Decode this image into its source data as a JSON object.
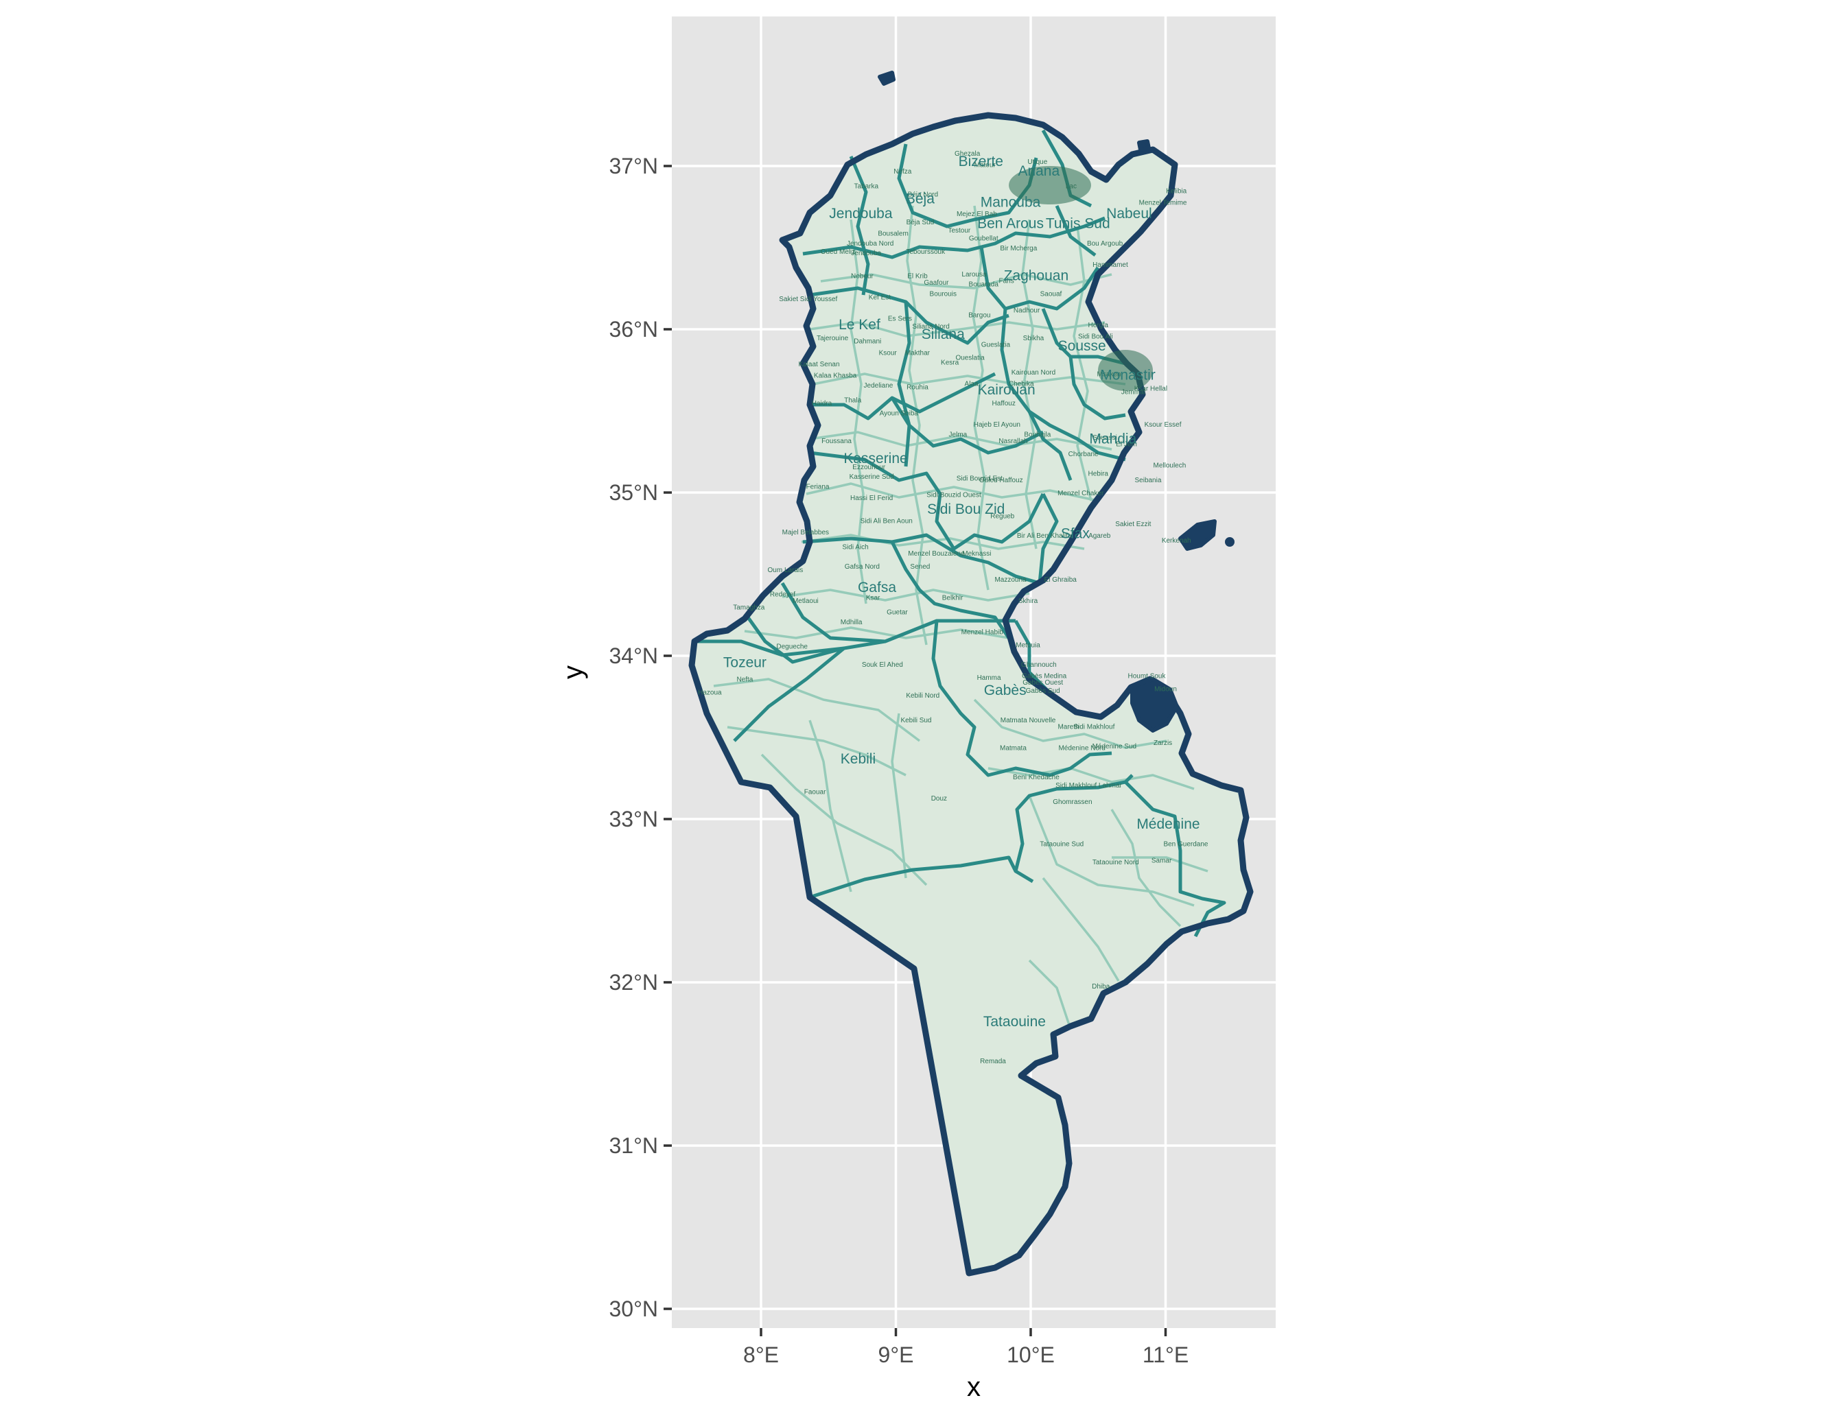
{
  "axes": {
    "x_title": "x",
    "y_title": "y",
    "x_ticks": [
      {
        "lon": 8,
        "label": "8°E"
      },
      {
        "lon": 9,
        "label": "9°E"
      },
      {
        "lon": 10,
        "label": "10°E"
      },
      {
        "lon": 11,
        "label": "11°E"
      }
    ],
    "y_ticks": [
      {
        "lat": 30,
        "label": "30°N"
      },
      {
        "lat": 31,
        "label": "31°N"
      },
      {
        "lat": 32,
        "label": "32°N"
      },
      {
        "lat": 33,
        "label": "33°N"
      },
      {
        "lat": 34,
        "label": "34°N"
      },
      {
        "lat": 35,
        "label": "35°N"
      },
      {
        "lat": 36,
        "label": "36°N"
      },
      {
        "lat": 37,
        "label": "37°N"
      }
    ],
    "lon_range": [
      7.33,
      11.8
    ],
    "lat_range": [
      29.9,
      37.9
    ]
  },
  "colors": {
    "panel": "#e5e5e5",
    "country_outline": "#1b3f63",
    "governorate_border": "#2a8a86",
    "delegation_border": "#96cbb9",
    "fill": "#dce9dd",
    "label": "#2a7b78"
  },
  "governorates": [
    {
      "name": "Bizerte",
      "lon": 9.63,
      "lat": 37.03
    },
    {
      "name": "Ariana",
      "lon": 10.06,
      "lat": 36.97
    },
    {
      "name": "Manouba",
      "lon": 9.85,
      "lat": 36.78
    },
    {
      "name": "Nabeul",
      "lon": 10.73,
      "lat": 36.71
    },
    {
      "name": "Ben Arous",
      "lon": 9.85,
      "lat": 36.65
    },
    {
      "name": "Tunis Sud",
      "lon": 10.35,
      "lat": 36.65
    },
    {
      "name": "Jendouba",
      "lon": 8.74,
      "lat": 36.71
    },
    {
      "name": "Béja",
      "lon": 9.18,
      "lat": 36.8
    },
    {
      "name": "Zaghouan",
      "lon": 10.04,
      "lat": 36.33
    },
    {
      "name": "Le Kef",
      "lon": 8.73,
      "lat": 36.03
    },
    {
      "name": "Siliana",
      "lon": 9.35,
      "lat": 35.97
    },
    {
      "name": "Sousse",
      "lon": 10.38,
      "lat": 35.9
    },
    {
      "name": "Monastir",
      "lon": 10.72,
      "lat": 35.72
    },
    {
      "name": "Kairouan",
      "lon": 9.82,
      "lat": 35.63
    },
    {
      "name": "Mahdia",
      "lon": 10.61,
      "lat": 35.33
    },
    {
      "name": "Kasserine",
      "lon": 8.85,
      "lat": 35.21
    },
    {
      "name": "Sidi Bou Zid",
      "lon": 9.52,
      "lat": 34.9
    },
    {
      "name": "Sfax",
      "lon": 10.33,
      "lat": 34.75
    },
    {
      "name": "Gafsa",
      "lon": 8.86,
      "lat": 34.42
    },
    {
      "name": "Tozeur",
      "lon": 7.88,
      "lat": 33.96
    },
    {
      "name": "Gabès",
      "lon": 9.81,
      "lat": 33.79
    },
    {
      "name": "Kebili",
      "lon": 8.72,
      "lat": 33.37
    },
    {
      "name": "Médenine",
      "lon": 11.02,
      "lat": 32.97
    },
    {
      "name": "Tataouine",
      "lon": 9.88,
      "lat": 31.76
    }
  ],
  "delegations": [
    {
      "name": "Nefza",
      "lon": 9.05,
      "lat": 36.97
    },
    {
      "name": "Tabarka",
      "lon": 8.78,
      "lat": 36.88
    },
    {
      "name": "Béja Nord",
      "lon": 9.2,
      "lat": 36.83
    },
    {
      "name": "Béja Sud",
      "lon": 9.18,
      "lat": 36.66
    },
    {
      "name": "Testour",
      "lon": 9.47,
      "lat": 36.61
    },
    {
      "name": "Goubellat",
      "lon": 9.65,
      "lat": 36.56
    },
    {
      "name": "Bousalem",
      "lon": 8.98,
      "lat": 36.59
    },
    {
      "name": "Jendouba Nord",
      "lon": 8.81,
      "lat": 36.53
    },
    {
      "name": "Oued Meliz",
      "lon": 8.57,
      "lat": 36.48
    },
    {
      "name": "Jendouba",
      "lon": 8.78,
      "lat": 36.47
    },
    {
      "name": "Tebourssouk",
      "lon": 9.22,
      "lat": 36.48
    },
    {
      "name": "Mateur",
      "lon": 9.66,
      "lat": 37.01
    },
    {
      "name": "Ghezala",
      "lon": 9.53,
      "lat": 37.08
    },
    {
      "name": "Utique",
      "lon": 10.05,
      "lat": 37.03
    },
    {
      "name": "Mejez El Bab",
      "lon": 9.6,
      "lat": 36.71
    },
    {
      "name": "Bir Mcherga",
      "lon": 9.91,
      "lat": 36.5
    },
    {
      "name": "Nebeur",
      "lon": 8.75,
      "lat": 36.33
    },
    {
      "name": "El Krib",
      "lon": 9.16,
      "lat": 36.33
    },
    {
      "name": "Bourouis",
      "lon": 9.35,
      "lat": 36.22
    },
    {
      "name": "Gaafour",
      "lon": 9.3,
      "lat": 36.29
    },
    {
      "name": "Larousa",
      "lon": 9.58,
      "lat": 36.34
    },
    {
      "name": "Bouarada",
      "lon": 9.65,
      "lat": 36.28
    },
    {
      "name": "Fahs",
      "lon": 9.82,
      "lat": 36.3
    },
    {
      "name": "Sakiet Sidi Youssef",
      "lon": 8.35,
      "lat": 36.19
    },
    {
      "name": "Kef Est",
      "lon": 8.88,
      "lat": 36.2
    },
    {
      "name": "Es Sers",
      "lon": 9.03,
      "lat": 36.07
    },
    {
      "name": "Siliana Nord",
      "lon": 9.26,
      "lat": 36.02
    },
    {
      "name": "Bargou",
      "lon": 9.62,
      "lat": 36.09
    },
    {
      "name": "Nadhour",
      "lon": 9.97,
      "lat": 36.12
    },
    {
      "name": "Saouaf",
      "lon": 10.15,
      "lat": 36.22
    },
    {
      "name": "Tajerouine",
      "lon": 8.53,
      "lat": 35.95
    },
    {
      "name": "Dahmani",
      "lon": 8.79,
      "lat": 35.93
    },
    {
      "name": "Makthar",
      "lon": 9.16,
      "lat": 35.86
    },
    {
      "name": "Ksour",
      "lon": 8.94,
      "lat": 35.86
    },
    {
      "name": "Gueslatia",
      "lon": 9.74,
      "lat": 35.91
    },
    {
      "name": "Sbikha",
      "lon": 10.02,
      "lat": 35.95
    },
    {
      "name": "Kesra",
      "lon": 9.4,
      "lat": 35.8
    },
    {
      "name": "Kalaat Senan",
      "lon": 8.43,
      "lat": 35.79
    },
    {
      "name": "Kalaa Khasba",
      "lon": 8.55,
      "lat": 35.72
    },
    {
      "name": "Jedeliane",
      "lon": 8.87,
      "lat": 35.66
    },
    {
      "name": "Rouhia",
      "lon": 9.16,
      "lat": 35.65
    },
    {
      "name": "Alaa",
      "lon": 9.56,
      "lat": 35.67
    },
    {
      "name": "Chebika",
      "lon": 9.93,
      "lat": 35.67
    },
    {
      "name": "Kairouan Nord",
      "lon": 10.02,
      "lat": 35.74
    },
    {
      "name": "Haffouz",
      "lon": 9.8,
      "lat": 35.55
    },
    {
      "name": "Haidra",
      "lon": 8.45,
      "lat": 35.55
    },
    {
      "name": "Thala",
      "lon": 8.68,
      "lat": 35.57
    },
    {
      "name": "Ayoun",
      "lon": 8.95,
      "lat": 35.49
    },
    {
      "name": "Sbiba",
      "lon": 9.1,
      "lat": 35.49
    },
    {
      "name": "Hajeb El Ayoun",
      "lon": 9.75,
      "lat": 35.42
    },
    {
      "name": "Oueslatia",
      "lon": 9.55,
      "lat": 35.83
    },
    {
      "name": "Jelma",
      "lon": 9.46,
      "lat": 35.36
    },
    {
      "name": "Nasrallah",
      "lon": 9.87,
      "lat": 35.32
    },
    {
      "name": "Bouhajla",
      "lon": 10.05,
      "lat": 35.36
    },
    {
      "name": "Foussana",
      "lon": 8.56,
      "lat": 35.32
    },
    {
      "name": "Ezzouhour",
      "lon": 8.8,
      "lat": 35.16
    },
    {
      "name": "Kasserine Sud",
      "lon": 8.82,
      "lat": 35.1
    },
    {
      "name": "Feriana",
      "lon": 8.42,
      "lat": 35.04
    },
    {
      "name": "Hassi El Ferid",
      "lon": 8.82,
      "lat": 34.97
    },
    {
      "name": "Sidi Bouzid Est",
      "lon": 9.62,
      "lat": 35.09
    },
    {
      "name": "Sidi Bouzid Ouest",
      "lon": 9.43,
      "lat": 34.99
    },
    {
      "name": "Ouled Haffouz",
      "lon": 9.78,
      "lat": 35.08
    },
    {
      "name": "Menzel Chaker",
      "lon": 10.37,
      "lat": 35.0
    },
    {
      "name": "Chorbane",
      "lon": 10.39,
      "lat": 35.24
    },
    {
      "name": "Hebira",
      "lon": 10.5,
      "lat": 35.12
    },
    {
      "name": "Souassi",
      "lon": 10.55,
      "lat": 35.34
    },
    {
      "name": "Bir Ali Ben Khalifa",
      "lon": 10.1,
      "lat": 34.74
    },
    {
      "name": "Regueb",
      "lon": 9.79,
      "lat": 34.86
    },
    {
      "name": "Sidi Ali Ben Aoun",
      "lon": 8.93,
      "lat": 34.83
    },
    {
      "name": "Majel Belabbes",
      "lon": 8.33,
      "lat": 34.76
    },
    {
      "name": "Sidi Aich",
      "lon": 8.7,
      "lat": 34.67
    },
    {
      "name": "Menzel Bouzaiene",
      "lon": 9.3,
      "lat": 34.63
    },
    {
      "name": "Meknassi",
      "lon": 9.6,
      "lat": 34.63
    },
    {
      "name": "Sened",
      "lon": 9.18,
      "lat": 34.55
    },
    {
      "name": "Gafsa Nord",
      "lon": 8.75,
      "lat": 34.55
    },
    {
      "name": "Oum Larais",
      "lon": 8.18,
      "lat": 34.53
    },
    {
      "name": "Mazzouna",
      "lon": 9.85,
      "lat": 34.47
    },
    {
      "name": "El Ghraiba",
      "lon": 10.22,
      "lat": 34.47
    },
    {
      "name": "Redeyef",
      "lon": 8.16,
      "lat": 34.38
    },
    {
      "name": "Metlaoui",
      "lon": 8.33,
      "lat": 34.34
    },
    {
      "name": "Ksar",
      "lon": 8.83,
      "lat": 34.36
    },
    {
      "name": "Belkhir",
      "lon": 9.42,
      "lat": 34.36
    },
    {
      "name": "Skhira",
      "lon": 9.98,
      "lat": 34.34
    },
    {
      "name": "Mdhilla",
      "lon": 8.67,
      "lat": 34.21
    },
    {
      "name": "Guetar",
      "lon": 9.01,
      "lat": 34.27
    },
    {
      "name": "Menzel Habib",
      "lon": 9.64,
      "lat": 34.15
    },
    {
      "name": "Metouia",
      "lon": 9.98,
      "lat": 34.07
    },
    {
      "name": "Tamaghza",
      "lon": 7.91,
      "lat": 34.3
    },
    {
      "name": "Degueche",
      "lon": 8.23,
      "lat": 34.06
    },
    {
      "name": "Souk El Ahed",
      "lon": 8.9,
      "lat": 33.95
    },
    {
      "name": "Hamma",
      "lon": 9.69,
      "lat": 33.87
    },
    {
      "name": "Ghannouch",
      "lon": 10.06,
      "lat": 33.95
    },
    {
      "name": "Gabès Medina",
      "lon": 10.1,
      "lat": 33.88
    },
    {
      "name": "Gabès Ouest",
      "lon": 10.09,
      "lat": 33.84
    },
    {
      "name": "Gabès Sud",
      "lon": 10.09,
      "lat": 33.79
    },
    {
      "name": "Nefta",
      "lon": 7.88,
      "lat": 33.86
    },
    {
      "name": "Hazoua",
      "lon": 7.62,
      "lat": 33.78
    },
    {
      "name": "Kebili Nord",
      "lon": 9.2,
      "lat": 33.76
    },
    {
      "name": "Kebili Sud",
      "lon": 9.15,
      "lat": 33.61
    },
    {
      "name": "Matmata Nouvelle",
      "lon": 9.98,
      "lat": 33.61
    },
    {
      "name": "Mareth",
      "lon": 10.28,
      "lat": 33.57
    },
    {
      "name": "Sidi Makhlouf",
      "lon": 10.47,
      "lat": 33.57
    },
    {
      "name": "Matmata",
      "lon": 9.87,
      "lat": 33.44
    },
    {
      "name": "Médenine Nord",
      "lon": 10.38,
      "lat": 33.44
    },
    {
      "name": "Médenine Sud",
      "lon": 10.62,
      "lat": 33.45
    },
    {
      "name": "Zarzis",
      "lon": 10.98,
      "lat": 33.47
    },
    {
      "name": "Beni Khedache",
      "lon": 10.04,
      "lat": 33.26
    },
    {
      "name": "Sidi Makhlouf Lahmar",
      "lon": 10.43,
      "lat": 33.21
    },
    {
      "name": "Ghomrassen",
      "lon": 10.31,
      "lat": 33.11
    },
    {
      "name": "Faouar",
      "lon": 8.4,
      "lat": 33.17
    },
    {
      "name": "Douz",
      "lon": 9.32,
      "lat": 33.13
    },
    {
      "name": "Tataouine Sud",
      "lon": 10.23,
      "lat": 32.85
    },
    {
      "name": "Ben Guerdane",
      "lon": 11.15,
      "lat": 32.85
    },
    {
      "name": "Tataouine Nord",
      "lon": 10.63,
      "lat": 32.74
    },
    {
      "name": "Samar",
      "lon": 10.97,
      "lat": 32.75
    },
    {
      "name": "Dhiba",
      "lon": 10.52,
      "lat": 31.98
    },
    {
      "name": "Remada",
      "lon": 9.72,
      "lat": 31.52
    },
    {
      "name": "Lac",
      "lon": 10.3,
      "lat": 36.88
    },
    {
      "name": "Kelibia",
      "lon": 11.08,
      "lat": 36.85
    },
    {
      "name": "Menzel Temime",
      "lon": 10.98,
      "lat": 36.78
    },
    {
      "name": "Hammamet",
      "lon": 10.59,
      "lat": 36.4
    },
    {
      "name": "Bou Argoub",
      "lon": 10.55,
      "lat": 36.53
    },
    {
      "name": "Hergla",
      "lon": 10.5,
      "lat": 36.03
    },
    {
      "name": "Sidi Bou Ali",
      "lon": 10.48,
      "lat": 35.96
    },
    {
      "name": "Msaken",
      "lon": 10.58,
      "lat": 35.73
    },
    {
      "name": "Ksar Hellal",
      "lon": 10.89,
      "lat": 35.64
    },
    {
      "name": "Jemmal",
      "lon": 10.76,
      "lat": 35.62
    },
    {
      "name": "El Jem",
      "lon": 10.71,
      "lat": 35.3
    },
    {
      "name": "Ksour Essef",
      "lon": 10.98,
      "lat": 35.42
    },
    {
      "name": "Melloulech",
      "lon": 11.03,
      "lat": 35.17
    },
    {
      "name": "Sakiet Ezzit",
      "lon": 10.76,
      "lat": 34.81
    },
    {
      "name": "Agareb",
      "lon": 10.51,
      "lat": 34.74
    },
    {
      "name": "Kerkenah",
      "lon": 11.08,
      "lat": 34.71
    },
    {
      "name": "Seibania",
      "lon": 10.87,
      "lat": 35.08
    }
  ],
  "island_labels": [
    {
      "name": "Houmt Souk",
      "lon": 10.86,
      "lat": 33.88
    },
    {
      "name": "Midoun",
      "lon": 11.0,
      "lat": 33.8
    }
  ]
}
